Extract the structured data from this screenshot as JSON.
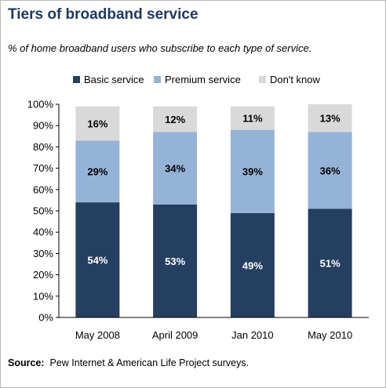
{
  "title": "Tiers of broadband service",
  "subtitle": "% of home broadband users who subscribe to each type of service.",
  "source": {
    "label": "Source:",
    "text": "Pew Internet & American Life Project surveys."
  },
  "colors": {
    "basic": "#243f60",
    "premium": "#95b3d7",
    "dont_know": "#d9d9d9"
  },
  "chart_data": {
    "type": "bar",
    "stacked": true,
    "categories": [
      "May 2008",
      "April 2009",
      "Jan 2010",
      "May 2010"
    ],
    "series": [
      {
        "name": "Basic service",
        "values": [
          54,
          53,
          49,
          51
        ]
      },
      {
        "name": "Premium service",
        "values": [
          29,
          34,
          39,
          36
        ]
      },
      {
        "name": "Don't know",
        "values": [
          16,
          12,
          11,
          13
        ]
      }
    ],
    "data_labels": [
      [
        "54%",
        "53%",
        "49%",
        "51%"
      ],
      [
        "29%",
        "34%",
        "39%",
        "36%"
      ],
      [
        "16%",
        "12%",
        "11%",
        "13%"
      ]
    ],
    "ylim": [
      0,
      100
    ],
    "yticks": [
      "0%",
      "10%",
      "20%",
      "30%",
      "40%",
      "50%",
      "60%",
      "70%",
      "80%",
      "90%",
      "100%"
    ],
    "legend_position": "top",
    "grid": false
  }
}
